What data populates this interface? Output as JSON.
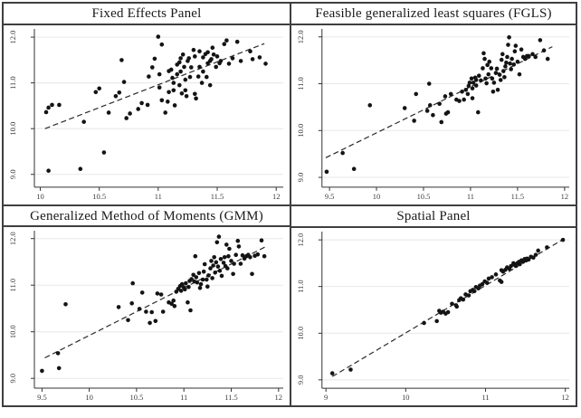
{
  "figure": {
    "background": "#ffffff",
    "border_color": "#3f3f3f"
  },
  "style": {
    "dot_color": "#141414",
    "fit_line_color": "#2a2a2a",
    "grid_color": "#e7e7e7",
    "axis_color": "#333333",
    "tick_color": "#333333"
  },
  "chart_data": [
    {
      "type": "scatter",
      "title": "Fixed Effects Panel",
      "xlim": [
        9.95,
        12.06
      ],
      "ylim": [
        8.72,
        12.12
      ],
      "xticks": [
        10,
        10.5,
        11,
        11.5,
        12
      ],
      "xtick_labels": [
        "10",
        "10.5",
        "11",
        "11.5",
        "12"
      ],
      "yticks": [
        9,
        10,
        11,
        12
      ],
      "ytick_labels": [
        "9.0",
        "10.0",
        "11.0",
        "12.0"
      ],
      "grid": "horizontal",
      "legend": "none",
      "fit_line": {
        "style": "dashed",
        "x1": 10.04,
        "y1": 10.0,
        "x2": 11.9,
        "y2": 11.86
      },
      "points": [
        [
          10.05,
          10.36
        ],
        [
          10.07,
          10.46
        ],
        [
          10.1,
          10.52
        ],
        [
          10.16,
          10.52
        ],
        [
          10.07,
          9.08
        ],
        [
          10.34,
          9.12
        ],
        [
          10.37,
          10.15
        ],
        [
          10.47,
          10.8
        ],
        [
          10.5,
          10.88
        ],
        [
          10.54,
          9.48
        ],
        [
          10.58,
          10.35
        ],
        [
          10.64,
          10.71
        ],
        [
          10.67,
          10.79
        ],
        [
          10.69,
          11.5
        ],
        [
          10.71,
          11.02
        ],
        [
          10.73,
          10.23
        ],
        [
          10.76,
          10.33
        ],
        [
          10.83,
          10.43
        ],
        [
          10.86,
          10.56
        ],
        [
          10.91,
          10.52
        ],
        [
          10.92,
          11.14
        ],
        [
          10.95,
          11.34
        ],
        [
          10.97,
          11.53
        ],
        [
          11.0,
          12.01
        ],
        [
          11.03,
          11.84
        ],
        [
          11.01,
          11.19
        ],
        [
          11.01,
          10.9
        ],
        [
          11.03,
          10.62
        ],
        [
          11.06,
          10.35
        ],
        [
          11.08,
          10.59
        ],
        [
          11.09,
          10.8
        ],
        [
          11.09,
          11.26
        ],
        [
          11.11,
          11.29
        ],
        [
          11.12,
          11.11
        ],
        [
          11.13,
          11.0
        ],
        [
          11.13,
          10.84
        ],
        [
          11.14,
          10.51
        ],
        [
          11.16,
          11.19
        ],
        [
          11.16,
          11.4
        ],
        [
          11.18,
          10.95
        ],
        [
          11.18,
          11.45
        ],
        [
          11.19,
          11.54
        ],
        [
          11.19,
          11.25
        ],
        [
          11.2,
          10.77
        ],
        [
          11.21,
          11.62
        ],
        [
          11.22,
          11.35
        ],
        [
          11.23,
          11.07
        ],
        [
          11.23,
          10.84
        ],
        [
          11.24,
          10.71
        ],
        [
          11.25,
          11.48
        ],
        [
          11.26,
          11.54
        ],
        [
          11.27,
          11.13
        ],
        [
          11.28,
          11.34
        ],
        [
          11.3,
          11.72
        ],
        [
          11.31,
          10.76
        ],
        [
          11.31,
          11.58
        ],
        [
          11.32,
          10.66
        ],
        [
          11.34,
          11.14
        ],
        [
          11.35,
          11.69
        ],
        [
          11.35,
          11.35
        ],
        [
          11.37,
          11.0
        ],
        [
          11.38,
          11.56
        ],
        [
          11.38,
          11.25
        ],
        [
          11.4,
          11.63
        ],
        [
          11.41,
          11.13
        ],
        [
          11.42,
          11.67
        ],
        [
          11.42,
          11.43
        ],
        [
          11.44,
          11.48
        ],
        [
          11.44,
          10.95
        ],
        [
          11.45,
          11.52
        ],
        [
          11.46,
          11.77
        ],
        [
          11.47,
          11.62
        ],
        [
          11.49,
          11.35
        ],
        [
          11.5,
          11.58
        ],
        [
          11.52,
          11.43
        ],
        [
          11.53,
          11.48
        ],
        [
          11.56,
          11.85
        ],
        [
          11.58,
          11.93
        ],
        [
          11.6,
          11.42
        ],
        [
          11.63,
          11.54
        ],
        [
          11.67,
          11.9
        ],
        [
          11.7,
          11.48
        ],
        [
          11.78,
          11.69
        ],
        [
          11.8,
          11.52
        ],
        [
          11.86,
          11.56
        ],
        [
          11.91,
          11.42
        ]
      ]
    },
    {
      "type": "scatter",
      "title": "Feasible generalized least squares (FGLS)",
      "xlim": [
        9.42,
        12.05
      ],
      "ylim": [
        8.79,
        12.11
      ],
      "xticks": [
        9.5,
        10,
        10.5,
        11,
        11.5,
        12
      ],
      "xtick_labels": [
        "9.5",
        "10",
        "10.5",
        "11",
        "11.5",
        "12"
      ],
      "yticks": [
        9,
        10,
        11,
        12
      ],
      "ytick_labels": [
        "9.0",
        "10.0",
        "11.0",
        "12.0"
      ],
      "grid": "horizontal",
      "legend": "none",
      "fit_line": {
        "style": "dashed",
        "x1": 9.46,
        "y1": 9.42,
        "x2": 11.87,
        "y2": 11.79
      },
      "points": [
        [
          9.47,
          9.12
        ],
        [
          9.64,
          9.52
        ],
        [
          9.76,
          9.18
        ],
        [
          9.93,
          10.54
        ],
        [
          10.3,
          10.48
        ],
        [
          10.4,
          10.21
        ],
        [
          10.42,
          10.78
        ],
        [
          10.54,
          10.42
        ],
        [
          10.56,
          11.0
        ],
        [
          10.57,
          10.54
        ],
        [
          10.6,
          10.33
        ],
        [
          10.67,
          10.57
        ],
        [
          10.69,
          10.18
        ],
        [
          10.74,
          10.36
        ],
        [
          10.76,
          10.39
        ],
        [
          10.73,
          10.73
        ],
        [
          10.79,
          10.78
        ],
        [
          10.85,
          10.66
        ],
        [
          10.88,
          10.63
        ],
        [
          10.91,
          10.83
        ],
        [
          10.93,
          10.66
        ],
        [
          10.95,
          10.87
        ],
        [
          10.97,
          10.78
        ],
        [
          10.98,
          10.95
        ],
        [
          10.99,
          11.02
        ],
        [
          11.01,
          11.11
        ],
        [
          11.02,
          10.9
        ],
        [
          11.02,
          10.69
        ],
        [
          11.03,
          11.02
        ],
        [
          11.05,
          11.13
        ],
        [
          11.06,
          10.96
        ],
        [
          11.06,
          11.08
        ],
        [
          11.08,
          10.39
        ],
        [
          11.09,
          11.17
        ],
        [
          11.11,
          11.07
        ],
        [
          11.13,
          11.33
        ],
        [
          11.14,
          11.65
        ],
        [
          11.15,
          11.53
        ],
        [
          11.16,
          11.11
        ],
        [
          11.17,
          11.01
        ],
        [
          11.18,
          11.4
        ],
        [
          11.19,
          11.2
        ],
        [
          11.2,
          11.47
        ],
        [
          11.22,
          11.33
        ],
        [
          11.23,
          11.11
        ],
        [
          11.24,
          10.83
        ],
        [
          11.25,
          11.02
        ],
        [
          11.27,
          11.23
        ],
        [
          11.28,
          11.32
        ],
        [
          11.29,
          10.87
        ],
        [
          11.31,
          11.19
        ],
        [
          11.32,
          11.08
        ],
        [
          11.33,
          11.51
        ],
        [
          11.34,
          11.63
        ],
        [
          11.35,
          11.27
        ],
        [
          11.36,
          11.14
        ],
        [
          11.37,
          11.37
        ],
        [
          11.38,
          11.45
        ],
        [
          11.39,
          11.57
        ],
        [
          11.4,
          11.83
        ],
        [
          11.41,
          11.99
        ],
        [
          11.42,
          11.43
        ],
        [
          11.43,
          11.31
        ],
        [
          11.44,
          11.53
        ],
        [
          11.46,
          11.41
        ],
        [
          11.47,
          11.69
        ],
        [
          11.48,
          11.81
        ],
        [
          11.5,
          11.47
        ],
        [
          11.52,
          11.2
        ],
        [
          11.54,
          11.73
        ],
        [
          11.56,
          11.57
        ],
        [
          11.58,
          11.53
        ],
        [
          11.6,
          11.59
        ],
        [
          11.62,
          11.59
        ],
        [
          11.66,
          11.63
        ],
        [
          11.69,
          11.57
        ],
        [
          11.74,
          11.93
        ],
        [
          11.78,
          11.71
        ],
        [
          11.82,
          11.53
        ]
      ]
    },
    {
      "type": "scatter",
      "title": "Generalized Method of Moments (GMM)",
      "xlim": [
        9.42,
        12.05
      ],
      "ylim": [
        8.79,
        12.11
      ],
      "xticks": [
        9.5,
        10,
        10.5,
        11,
        11.5,
        12
      ],
      "xtick_labels": [
        "9.5",
        "10",
        "10.5",
        "11",
        "11.5",
        "12"
      ],
      "yticks": [
        9,
        10,
        11,
        12
      ],
      "ytick_labels": [
        "9.0",
        "10.0",
        "11.0",
        "12.0"
      ],
      "grid": "horizontal",
      "legend": "none",
      "fit_line": {
        "style": "dashed",
        "x1": 9.53,
        "y1": 9.44,
        "x2": 11.86,
        "y2": 11.82
      },
      "points": [
        [
          9.5,
          9.16
        ],
        [
          9.67,
          9.54
        ],
        [
          9.68,
          9.22
        ],
        [
          9.75,
          10.59
        ],
        [
          10.31,
          10.53
        ],
        [
          10.41,
          10.25
        ],
        [
          10.45,
          10.61
        ],
        [
          10.53,
          10.49
        ],
        [
          10.6,
          10.43
        ],
        [
          10.64,
          10.19
        ],
        [
          10.46,
          11.04
        ],
        [
          10.56,
          10.84
        ],
        [
          10.66,
          10.42
        ],
        [
          10.7,
          10.23
        ],
        [
          10.72,
          10.82
        ],
        [
          10.76,
          10.8
        ],
        [
          10.78,
          10.43
        ],
        [
          10.84,
          10.63
        ],
        [
          10.87,
          10.6
        ],
        [
          10.89,
          10.67
        ],
        [
          10.9,
          10.55
        ],
        [
          10.92,
          10.86
        ],
        [
          10.94,
          10.92
        ],
        [
          10.96,
          10.98
        ],
        [
          10.97,
          10.88
        ],
        [
          10.98,
          11.02
        ],
        [
          11.0,
          10.95
        ],
        [
          11.01,
          10.91
        ],
        [
          11.02,
          11.04
        ],
        [
          11.04,
          10.63
        ],
        [
          11.05,
          10.96
        ],
        [
          11.06,
          11.09
        ],
        [
          11.07,
          10.46
        ],
        [
          11.08,
          11.13
        ],
        [
          11.1,
          11.22
        ],
        [
          11.11,
          11.08
        ],
        [
          11.12,
          11.62
        ],
        [
          11.13,
          11.17
        ],
        [
          11.14,
          11.06
        ],
        [
          11.16,
          11.26
        ],
        [
          11.17,
          10.94
        ],
        [
          11.18,
          11.02
        ],
        [
          11.2,
          11.12
        ],
        [
          11.21,
          11.29
        ],
        [
          11.22,
          11.45
        ],
        [
          11.24,
          11.12
        ],
        [
          11.25,
          10.97
        ],
        [
          11.26,
          11.21
        ],
        [
          11.28,
          11.36
        ],
        [
          11.29,
          11.52
        ],
        [
          11.3,
          11.15
        ],
        [
          11.31,
          11.42
        ],
        [
          11.32,
          11.6
        ],
        [
          11.33,
          11.27
        ],
        [
          11.34,
          11.49
        ],
        [
          11.35,
          11.92
        ],
        [
          11.36,
          11.4
        ],
        [
          11.37,
          12.04
        ],
        [
          11.38,
          11.31
        ],
        [
          11.39,
          11.56
        ],
        [
          11.4,
          11.2
        ],
        [
          11.42,
          11.48
        ],
        [
          11.43,
          11.6
        ],
        [
          11.44,
          11.41
        ],
        [
          11.45,
          11.87
        ],
        [
          11.46,
          11.36
        ],
        [
          11.47,
          11.62
        ],
        [
          11.48,
          11.78
        ],
        [
          11.5,
          11.52
        ],
        [
          11.52,
          11.24
        ],
        [
          11.53,
          11.46
        ],
        [
          11.55,
          11.65
        ],
        [
          11.57,
          11.95
        ],
        [
          11.58,
          11.83
        ],
        [
          11.6,
          11.46
        ],
        [
          11.62,
          11.64
        ],
        [
          11.64,
          11.57
        ],
        [
          11.66,
          11.62
        ],
        [
          11.68,
          11.65
        ],
        [
          11.7,
          11.6
        ],
        [
          11.72,
          11.24
        ],
        [
          11.75,
          11.63
        ],
        [
          11.78,
          11.66
        ],
        [
          11.82,
          11.96
        ],
        [
          11.85,
          11.62
        ]
      ]
    },
    {
      "type": "scatter",
      "title": "Spatial Panel",
      "xlim": [
        8.95,
        12.05
      ],
      "ylim": [
        8.82,
        12.12
      ],
      "xticks": [
        9,
        10,
        11,
        12
      ],
      "xtick_labels": [
        "9",
        "10",
        "11",
        "12"
      ],
      "yticks": [
        9,
        10,
        11,
        12
      ],
      "ytick_labels": [
        "9.0",
        "10.0",
        "11.0",
        "12.0"
      ],
      "grid": "horizontal",
      "legend": "none",
      "fit_line": {
        "style": "dashed",
        "x1": 9.08,
        "y1": 9.07,
        "x2": 11.99,
        "y2": 12.03
      },
      "points": [
        [
          9.08,
          9.14
        ],
        [
          9.31,
          9.22
        ],
        [
          10.23,
          10.22
        ],
        [
          10.39,
          10.26
        ],
        [
          10.42,
          10.48
        ],
        [
          10.44,
          10.44
        ],
        [
          10.47,
          10.46
        ],
        [
          10.5,
          10.42
        ],
        [
          10.53,
          10.45
        ],
        [
          10.58,
          10.63
        ],
        [
          10.63,
          10.6
        ],
        [
          10.64,
          10.57
        ],
        [
          10.67,
          10.71
        ],
        [
          10.69,
          10.75
        ],
        [
          10.72,
          10.72
        ],
        [
          10.75,
          10.83
        ],
        [
          10.79,
          10.81
        ],
        [
          10.81,
          10.9
        ],
        [
          10.84,
          10.93
        ],
        [
          10.86,
          10.9
        ],
        [
          10.88,
          10.99
        ],
        [
          10.91,
          10.96
        ],
        [
          10.93,
          11.02
        ],
        [
          10.96,
          11.05
        ],
        [
          10.99,
          11.11
        ],
        [
          11.02,
          11.08
        ],
        [
          11.04,
          11.17
        ],
        [
          11.08,
          11.2
        ],
        [
          11.13,
          11.26
        ],
        [
          11.18,
          11.13
        ],
        [
          11.2,
          11.1
        ],
        [
          11.2,
          11.35
        ],
        [
          11.22,
          11.32
        ],
        [
          11.25,
          11.36
        ],
        [
          11.27,
          11.41
        ],
        [
          11.3,
          11.38
        ],
        [
          11.32,
          11.44
        ],
        [
          11.35,
          11.5
        ],
        [
          11.36,
          11.47
        ],
        [
          11.38,
          11.44
        ],
        [
          11.4,
          11.5
        ],
        [
          11.42,
          11.53
        ],
        [
          11.43,
          11.48
        ],
        [
          11.45,
          11.56
        ],
        [
          11.47,
          11.53
        ],
        [
          11.49,
          11.59
        ],
        [
          11.51,
          11.56
        ],
        [
          11.52,
          11.6
        ],
        [
          11.54,
          11.58
        ],
        [
          11.57,
          11.64
        ],
        [
          11.6,
          11.62
        ],
        [
          11.63,
          11.68
        ],
        [
          11.66,
          11.77
        ],
        [
          11.77,
          11.84
        ],
        [
          11.97,
          12.0
        ]
      ]
    }
  ]
}
